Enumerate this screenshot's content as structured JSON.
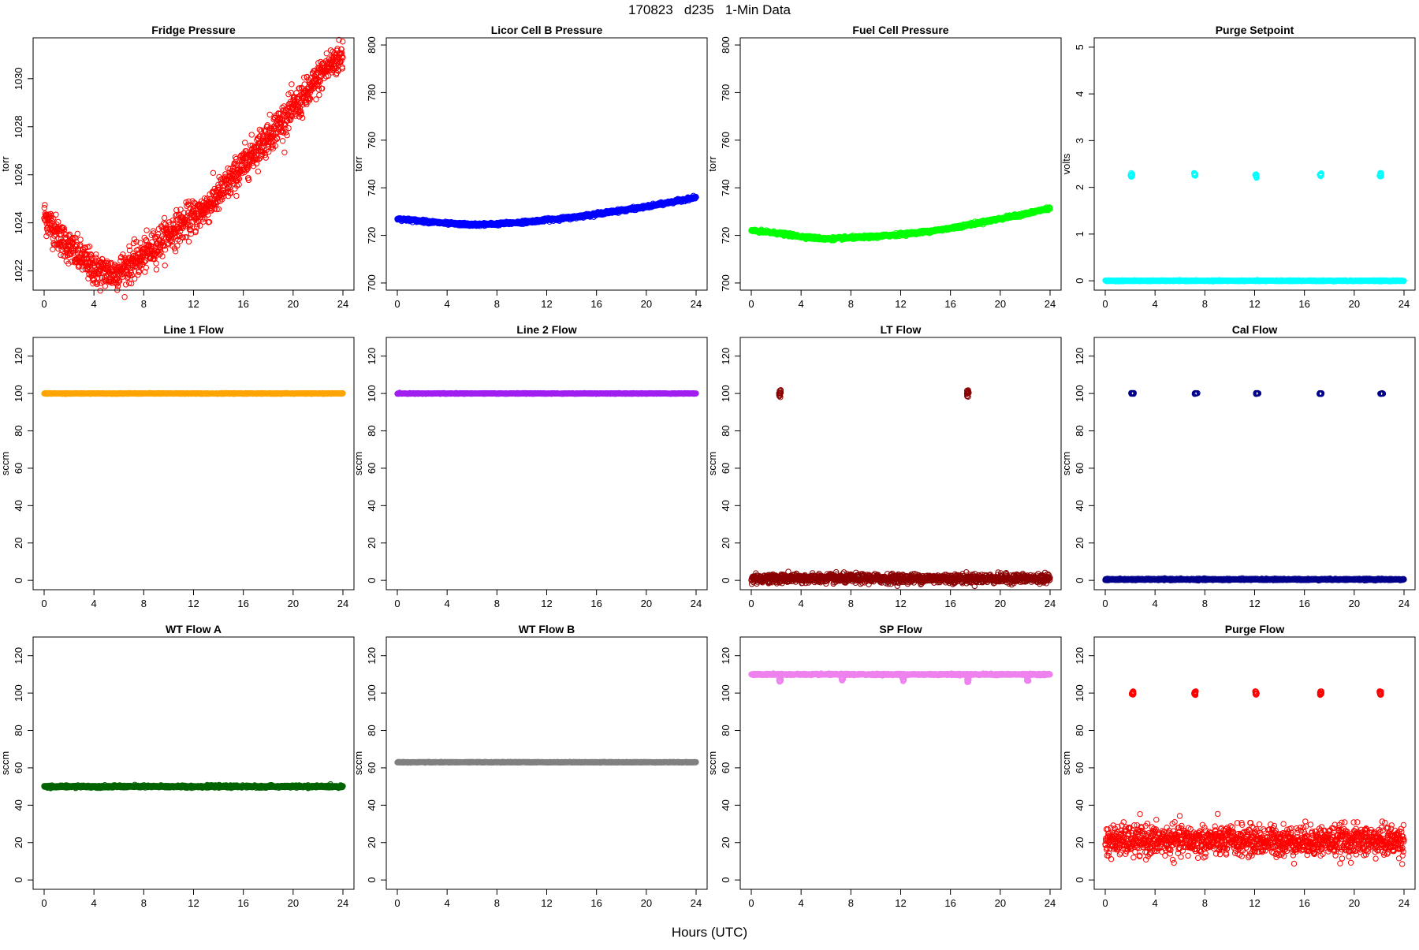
{
  "figure": {
    "title": "170823   d235   1-Min Data",
    "xlabel": "Hours (UTC)"
  },
  "chart_data": [
    {
      "type": "scatter",
      "title": "Fridge Pressure",
      "ylabel": "torr",
      "color": "#ff0000",
      "marker": "open-circle",
      "xlim": [
        0,
        24
      ],
      "xticks": [
        0,
        4,
        8,
        12,
        16,
        20,
        24
      ],
      "ylim": [
        1021.2,
        1031.7
      ],
      "yticks": [
        1022,
        1024,
        1026,
        1028,
        1030
      ],
      "series": [
        {
          "segments": [
            {
              "x0": 0,
              "x1": 24,
              "y": [
                1024.3,
                1023.3,
                1022.6,
                1022.0,
                1021.9,
                1022.3,
                1022.8,
                1023.5,
                1024.0,
                1024.5,
                1025.2,
                1026.1,
                1027.0,
                1027.8,
                1028.6,
                1029.4,
                1030.4,
                1031.0
              ],
              "noise": 0.35
            }
          ]
        }
      ]
    },
    {
      "type": "scatter",
      "title": "Licor Cell B Pressure",
      "ylabel": "torr",
      "color": "#0000ff",
      "marker": "open-circle",
      "xlim": [
        0,
        24
      ],
      "xticks": [
        0,
        4,
        8,
        12,
        16,
        20,
        24
      ],
      "ylim": [
        697,
        803
      ],
      "yticks": [
        700,
        720,
        740,
        760,
        780,
        800
      ],
      "series": [
        {
          "segments": [
            {
              "x0": 0,
              "x1": 24,
              "y": [
                727,
                726,
                725,
                724.5,
                724.8,
                725.5,
                726.5,
                727.5,
                729,
                730.5,
                732,
                734,
                736
              ],
              "noise": 0.3
            }
          ]
        }
      ]
    },
    {
      "type": "scatter",
      "title": "Fuel Cell Pressure",
      "ylabel": "torr",
      "color": "#00ff00",
      "marker": "open-circle",
      "xlim": [
        0,
        24
      ],
      "xticks": [
        0,
        4,
        8,
        12,
        16,
        20,
        24
      ],
      "ylim": [
        697,
        803
      ],
      "yticks": [
        700,
        720,
        740,
        760,
        780,
        800
      ],
      "series": [
        {
          "segments": [
            {
              "x0": 0,
              "x1": 24,
              "y": [
                722,
                721,
                719.5,
                718.5,
                719,
                719.5,
                720.5,
                721.5,
                723,
                725,
                727,
                729,
                731.5
              ],
              "noise": 0.3
            }
          ]
        }
      ]
    },
    {
      "type": "scatter",
      "title": "Purge Setpoint",
      "ylabel": "volts",
      "color": "#00ffff",
      "marker": "open-circle",
      "xlim": [
        0,
        24
      ],
      "xticks": [
        0,
        4,
        8,
        12,
        16,
        20,
        24
      ],
      "ylim": [
        -0.2,
        5.2
      ],
      "yticks": [
        0,
        1,
        2,
        3,
        4,
        5
      ],
      "series": [
        {
          "segments": [
            {
              "x0": 0,
              "x1": 24,
              "y": [
                0
              ],
              "noise": 0.005
            }
          ]
        },
        {
          "clusters": [
            {
              "x": 2.1,
              "y": 2.27
            },
            {
              "x": 7.2,
              "y": 2.28
            },
            {
              "x": 12.1,
              "y": 2.24
            },
            {
              "x": 17.3,
              "y": 2.27
            },
            {
              "x": 22.1,
              "y": 2.27
            }
          ],
          "spread": [
            0.15,
            0.04
          ]
        }
      ]
    },
    {
      "type": "scatter",
      "title": "Line 1 Flow",
      "ylabel": "sccm",
      "color": "#ffa500",
      "marker": "open-circle",
      "xlim": [
        0,
        24
      ],
      "xticks": [
        0,
        4,
        8,
        12,
        16,
        20,
        24
      ],
      "ylim": [
        -5,
        130
      ],
      "yticks": [
        0,
        20,
        40,
        60,
        80,
        100,
        120
      ],
      "series": [
        {
          "segments": [
            {
              "x0": 0,
              "x1": 24,
              "y": [
                100
              ],
              "noise": 0.1
            }
          ]
        }
      ]
    },
    {
      "type": "scatter",
      "title": "Line 2 Flow",
      "ylabel": "sccm",
      "color": "#a020f0",
      "marker": "open-circle",
      "xlim": [
        0,
        24
      ],
      "xticks": [
        0,
        4,
        8,
        12,
        16,
        20,
        24
      ],
      "ylim": [
        -5,
        130
      ],
      "yticks": [
        0,
        20,
        40,
        60,
        80,
        100,
        120
      ],
      "series": [
        {
          "segments": [
            {
              "x0": 0,
              "x1": 24,
              "y": [
                100
              ],
              "noise": 0.1
            }
          ]
        }
      ]
    },
    {
      "type": "scatter",
      "title": "LT Flow",
      "ylabel": "sccm",
      "color": "#8b0000",
      "marker": "open-circle",
      "xlim": [
        0,
        24
      ],
      "xticks": [
        0,
        4,
        8,
        12,
        16,
        20,
        24
      ],
      "ylim": [
        -5,
        130
      ],
      "yticks": [
        0,
        20,
        40,
        60,
        80,
        100,
        120
      ],
      "series": [
        {
          "segments": [
            {
              "x0": 0,
              "x1": 24,
              "y": [
                1
              ],
              "noise": 1.2
            }
          ]
        },
        {
          "clusters": [
            {
              "x": 2.3,
              "y": 100
            },
            {
              "x": 17.4,
              "y": 100
            }
          ],
          "spread": [
            0.15,
            2
          ]
        }
      ]
    },
    {
      "type": "scatter",
      "title": "Cal Flow",
      "ylabel": "sccm",
      "color": "#00008b",
      "marker": "open-circle",
      "xlim": [
        0,
        24
      ],
      "xticks": [
        0,
        4,
        8,
        12,
        16,
        20,
        24
      ],
      "ylim": [
        -5,
        130
      ],
      "yticks": [
        0,
        20,
        40,
        60,
        80,
        100,
        120
      ],
      "series": [
        {
          "segments": [
            {
              "x0": 0,
              "x1": 24,
              "y": [
                0.5
              ],
              "noise": 0.2
            }
          ]
        },
        {
          "clusters": [
            {
              "x": 2.2,
              "y": 100
            },
            {
              "x": 7.3,
              "y": 100
            },
            {
              "x": 12.2,
              "y": 100
            },
            {
              "x": 17.3,
              "y": 100
            },
            {
              "x": 22.2,
              "y": 100
            }
          ],
          "spread": [
            0.25,
            0.3
          ]
        }
      ]
    },
    {
      "type": "scatter",
      "title": "WT Flow A",
      "ylabel": "sccm",
      "color": "#006400",
      "marker": "open-circle",
      "xlim": [
        0,
        24
      ],
      "xticks": [
        0,
        4,
        8,
        12,
        16,
        20,
        24
      ],
      "ylim": [
        -5,
        130
      ],
      "yticks": [
        0,
        20,
        40,
        60,
        80,
        100,
        120
      ],
      "series": [
        {
          "segments": [
            {
              "x0": 0,
              "x1": 24,
              "y": [
                50
              ],
              "noise": 0.3
            }
          ]
        }
      ]
    },
    {
      "type": "scatter",
      "title": "WT Flow B",
      "ylabel": "sccm",
      "color": "#808080",
      "marker": "open-circle",
      "xlim": [
        0,
        24
      ],
      "xticks": [
        0,
        4,
        8,
        12,
        16,
        20,
        24
      ],
      "ylim": [
        -5,
        130
      ],
      "yticks": [
        0,
        20,
        40,
        60,
        80,
        100,
        120
      ],
      "series": [
        {
          "segments": [
            {
              "x0": 0,
              "x1": 24,
              "y": [
                63
              ],
              "noise": 0.1
            }
          ]
        }
      ]
    },
    {
      "type": "scatter",
      "title": "SP Flow",
      "ylabel": "sccm",
      "color": "#ee82ee",
      "marker": "open-circle",
      "xlim": [
        0,
        24
      ],
      "xticks": [
        0,
        4,
        8,
        12,
        16,
        20,
        24
      ],
      "ylim": [
        -5,
        130
      ],
      "yticks": [
        0,
        20,
        40,
        60,
        80,
        100,
        120
      ],
      "series": [
        {
          "segments": [
            {
              "x0": 0,
              "x1": 24,
              "y": [
                110
              ],
              "noise": 0.2
            }
          ]
        },
        {
          "clusters": [
            {
              "x": 2.3,
              "y": 107
            },
            {
              "x": 7.3,
              "y": 107.5
            },
            {
              "x": 12.2,
              "y": 107.5
            },
            {
              "x": 17.4,
              "y": 107
            },
            {
              "x": 22.2,
              "y": 107.5
            }
          ],
          "spread": [
            0.15,
            1.2
          ]
        }
      ]
    },
    {
      "type": "scatter",
      "title": "Purge Flow",
      "ylabel": "sccm",
      "color": "#ff0000",
      "marker": "open-circle",
      "xlim": [
        0,
        24
      ],
      "xticks": [
        0,
        4,
        8,
        12,
        16,
        20,
        24
      ],
      "ylim": [
        -5,
        130
      ],
      "yticks": [
        0,
        20,
        40,
        60,
        80,
        100,
        120
      ],
      "series": [
        {
          "segments": [
            {
              "x0": 0,
              "x1": 24,
              "y": [
                21
              ],
              "noise": 4
            }
          ]
        },
        {
          "clusters": [
            {
              "x": 2.2,
              "y": 100
            },
            {
              "x": 7.2,
              "y": 100
            },
            {
              "x": 12.1,
              "y": 100
            },
            {
              "x": 17.3,
              "y": 100
            },
            {
              "x": 22.1,
              "y": 100
            }
          ],
          "spread": [
            0.15,
            1
          ]
        }
      ]
    }
  ]
}
